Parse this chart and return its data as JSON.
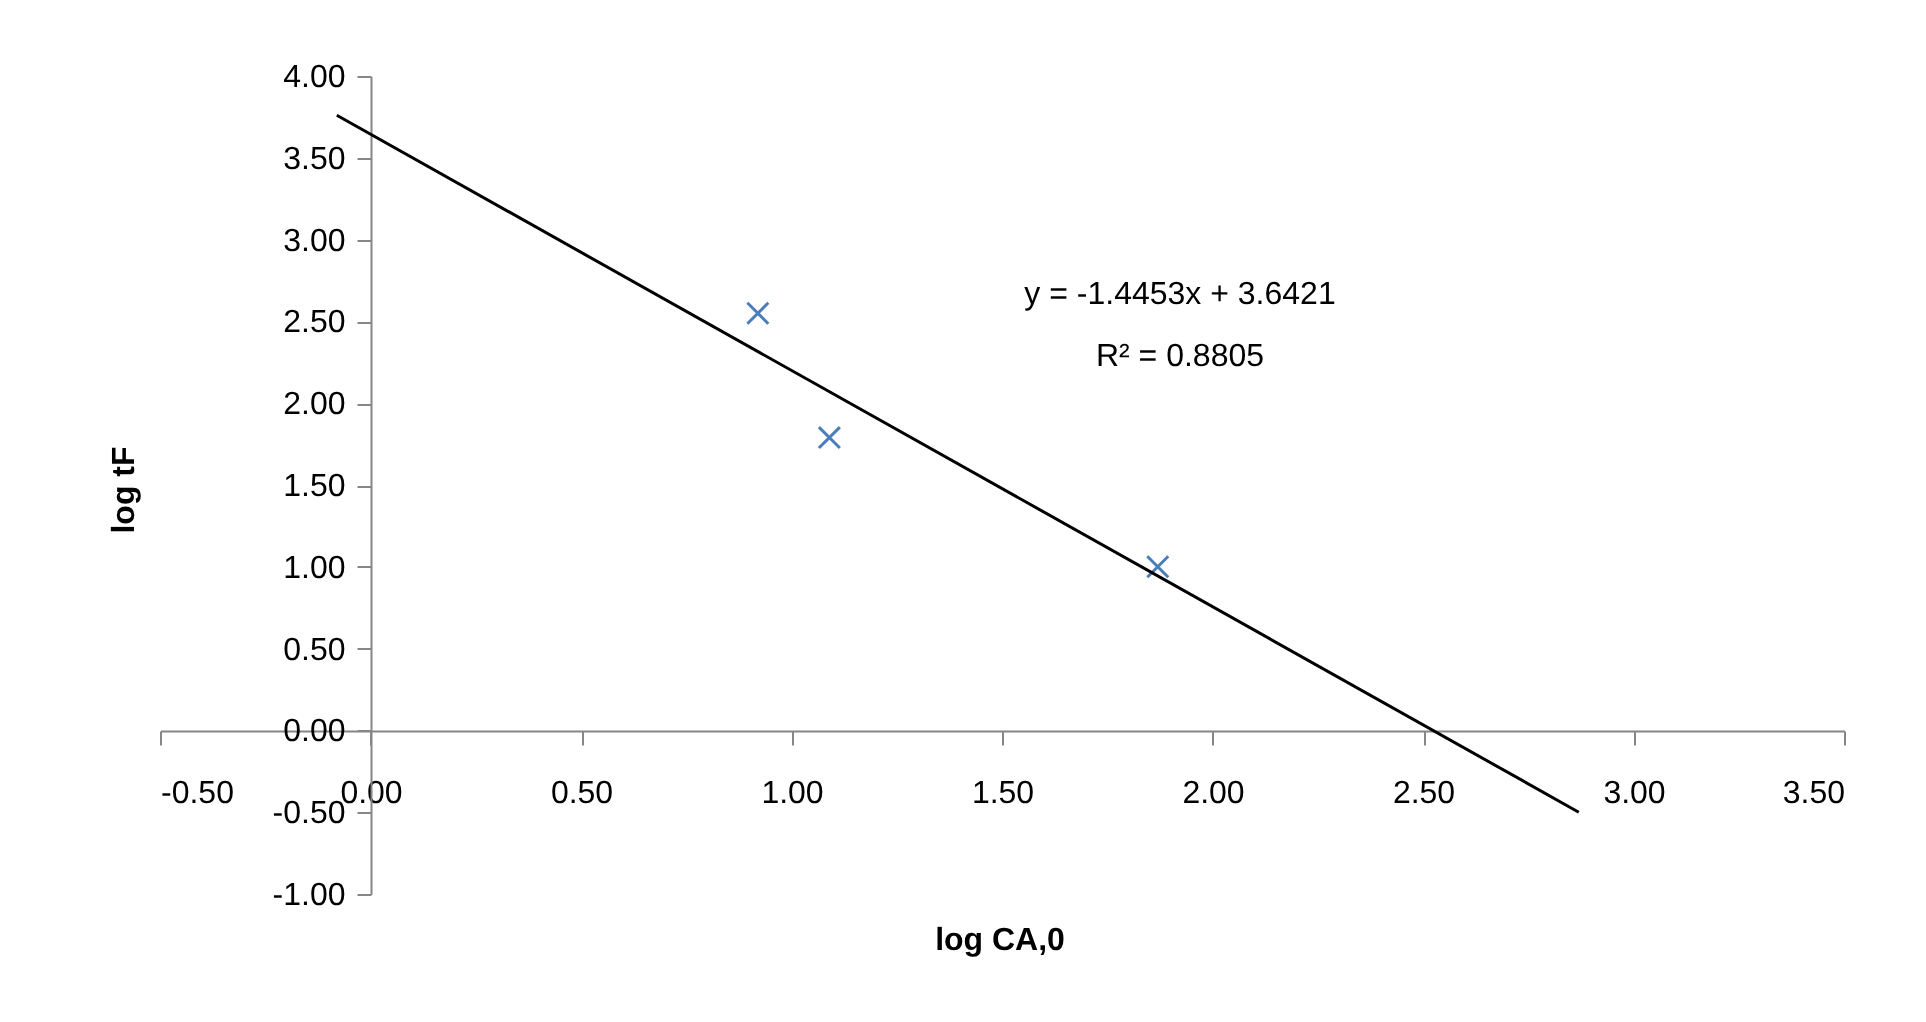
{
  "chart_data": {
    "type": "scatter",
    "xlabel": "log CA,0",
    "ylabel": "log tF",
    "x": [
      0.92,
      1.09,
      1.87
    ],
    "series": [
      {
        "color": "#4a7ebb",
        "marker": "cross",
        "values": [
          2.55,
          1.79,
          1.0
        ]
      },
      {
        "type": "line",
        "color": "#000000",
        "marker": "none",
        "line_style": "solid",
        "x": [
          -0.08,
          2.87
        ],
        "values": [
          3.76,
          -0.5
        ]
      }
    ],
    "xlim": [
      -0.5,
      3.5
    ],
    "xticks": [
      {
        "value": -0.5,
        "label": "-0.50"
      },
      {
        "value": 0,
        "label": "0.00"
      },
      {
        "value": 0.5,
        "label": "0.50"
      },
      {
        "value": 1,
        "label": "1.00"
      },
      {
        "value": 1.5,
        "label": "1.50"
      },
      {
        "value": 2,
        "label": "2.00"
      },
      {
        "value": 2.5,
        "label": "2.50"
      },
      {
        "value": 3,
        "label": "3.00"
      },
      {
        "value": 3.5,
        "label": "3.50"
      }
    ],
    "ylim": [
      -1,
      4
    ],
    "yticks": [
      {
        "value": -1,
        "label": "-1.00"
      },
      {
        "value": -0.5,
        "label": "-0.50"
      },
      {
        "value": 0,
        "label": "0.00"
      },
      {
        "value": 0.5,
        "label": "0.50"
      },
      {
        "value": 1,
        "label": "1.00"
      },
      {
        "value": 1.5,
        "label": "1.50"
      },
      {
        "value": 2,
        "label": "2.00"
      },
      {
        "value": 2.5,
        "label": "2.50"
      },
      {
        "value": 3,
        "label": "3.00"
      },
      {
        "value": 3.5,
        "label": "3.50"
      },
      {
        "value": 4,
        "label": "4.00"
      }
    ],
    "annotations": [
      "y = -1.4453x + 3.6421",
      "R² = 0.8805"
    ],
    "grid": false
  }
}
